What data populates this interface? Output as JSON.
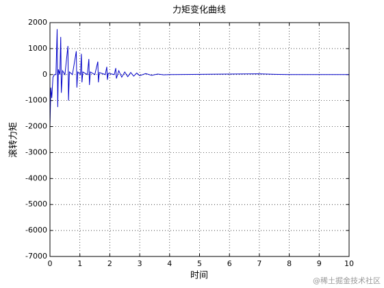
{
  "chart_data": {
    "type": "line",
    "title": "力矩变化曲线",
    "x_label": "时间",
    "y_label": "滚转力矩",
    "watermark": "@稀土掘金技术社区",
    "x": [
      0,
      0.03,
      0.06,
      0.1,
      0.15,
      0.2,
      0.24,
      0.26,
      0.28,
      0.33,
      0.36,
      0.38,
      0.42,
      0.5,
      0.6,
      0.62,
      0.65,
      0.75,
      0.88,
      0.9,
      0.93,
      1.02,
      1.05,
      1.07,
      1.1,
      1.25,
      1.3,
      1.32,
      1.35,
      1.5,
      1.6,
      1.62,
      1.65,
      1.85,
      1.9,
      1.92,
      1.95,
      2.15,
      2.2,
      2.22,
      2.3,
      2.4,
      2.5,
      2.6,
      2.7,
      2.8,
      2.9,
      3.0,
      3.2,
      3.4,
      3.6,
      3.8,
      4.0,
      6.0,
      7.0,
      7.5,
      8.0,
      10
    ],
    "series": [
      {
        "name": "滚转力矩",
        "color": "#0000c8",
        "values": [
          -2000,
          -500,
          -900,
          -100,
          0,
          0,
          1750,
          -1250,
          200,
          0,
          1450,
          -700,
          150,
          0,
          1100,
          -1000,
          100,
          0,
          900,
          -500,
          100,
          0,
          800,
          -300,
          100,
          0,
          600,
          -400,
          100,
          0,
          500,
          -300,
          80,
          0,
          300,
          -200,
          50,
          0,
          250,
          -150,
          150,
          -100,
          100,
          -80,
          80,
          -60,
          60,
          -40,
          40,
          -30,
          20,
          -10,
          0,
          20,
          30,
          10,
          0,
          0
        ]
      }
    ],
    "xlim": [
      0,
      10
    ],
    "xticks": [
      0,
      1,
      2,
      3,
      4,
      5,
      6,
      7,
      8,
      9,
      10
    ],
    "ylim": [
      -7000,
      2000
    ],
    "yticks": [
      -7000,
      -6000,
      -5000,
      -4000,
      -3000,
      -2000,
      -1000,
      0,
      1000,
      2000
    ],
    "grid": true
  }
}
